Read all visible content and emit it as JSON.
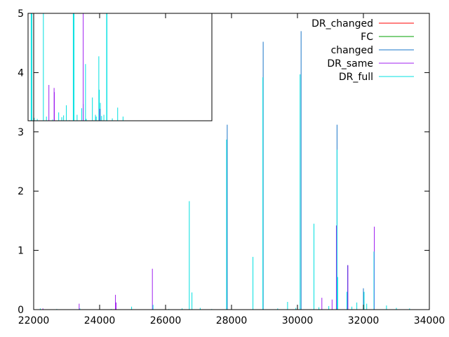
{
  "chart_data": {
    "type": "line",
    "style": "impulses",
    "title": "",
    "xlabel": "",
    "ylabel": "",
    "xlim": [
      22000,
      34000
    ],
    "ylim": [
      0,
      5
    ],
    "xticks": [
      "22000",
      "24000",
      "26000",
      "28000",
      "30000",
      "32000",
      "34000"
    ],
    "yticks": [
      "0",
      "1",
      "2",
      "3",
      "4",
      "5"
    ],
    "legend_position": "top-right",
    "grid": false,
    "series": [
      {
        "name": "DR_changed",
        "color": "#ff0000",
        "points": []
      },
      {
        "name": "FC",
        "color": "#00a000",
        "points": []
      },
      {
        "name": "changed",
        "color": "#1a76c8",
        "points": [
          [
            27870,
            3.12
          ],
          [
            28960,
            4.52
          ],
          [
            30110,
            4.7
          ],
          [
            31200,
            3.12
          ],
          [
            31520,
            0.75
          ],
          [
            32000,
            0.36
          ]
        ]
      },
      {
        "name": "DR_same",
        "color": "#a020f0",
        "points": [
          [
            22280,
            0.02
          ],
          [
            23380,
            0.1
          ],
          [
            24480,
            0.25
          ],
          [
            24500,
            0.12
          ],
          [
            25600,
            0.69
          ],
          [
            30740,
            0.2
          ],
          [
            31050,
            0.17
          ],
          [
            31180,
            1.42
          ],
          [
            31530,
            0.75
          ],
          [
            32330,
            1.4
          ]
        ]
      },
      {
        "name": "DR_full",
        "color": "#00e0e0",
        "points": [
          [
            22200,
            0.02
          ],
          [
            22700,
            0.01
          ],
          [
            23400,
            0.02
          ],
          [
            24000,
            0.01
          ],
          [
            24350,
            0.01
          ],
          [
            24970,
            0.05
          ],
          [
            25620,
            0.08
          ],
          [
            26100,
            0.01
          ],
          [
            26500,
            0.02
          ],
          [
            26720,
            1.83
          ],
          [
            26800,
            0.29
          ],
          [
            27050,
            0.03
          ],
          [
            27400,
            0.01
          ],
          [
            27850,
            2.87
          ],
          [
            28650,
            0.89
          ],
          [
            28950,
            3.92
          ],
          [
            29400,
            0.02
          ],
          [
            29700,
            0.13
          ],
          [
            29950,
            0.03
          ],
          [
            30080,
            3.97
          ],
          [
            30500,
            1.45
          ],
          [
            30650,
            0.04
          ],
          [
            30950,
            0.06
          ],
          [
            31200,
            2.7
          ],
          [
            31220,
            0.55
          ],
          [
            31500,
            0.3
          ],
          [
            31650,
            0.05
          ],
          [
            31800,
            0.12
          ],
          [
            32020,
            0.3
          ],
          [
            32100,
            0.1
          ],
          [
            32320,
            0.98
          ],
          [
            32700,
            0.07
          ],
          [
            33000,
            0.03
          ],
          [
            33400,
            0.02
          ]
        ]
      }
    ]
  },
  "inset": {
    "series_order": [
      "DR_full",
      "DR_same"
    ],
    "bars": [
      {
        "series": "DR_full",
        "points": [
          [
            22200,
            5.0
          ],
          [
            22250,
            5.0
          ],
          [
            22400,
            3.25
          ],
          [
            22600,
            3.23
          ],
          [
            23000,
            5.0
          ],
          [
            23200,
            3.27
          ],
          [
            23600,
            3.22
          ],
          [
            24000,
            3.34
          ],
          [
            24200,
            3.26
          ],
          [
            24320,
            3.29
          ],
          [
            24500,
            3.46
          ],
          [
            24700,
            3.21
          ],
          [
            24950,
            5.0
          ],
          [
            25000,
            5.0
          ],
          [
            25200,
            3.3
          ],
          [
            25500,
            3.41
          ],
          [
            25600,
            3.48
          ],
          [
            25750,
            4.15
          ],
          [
            25800,
            3.23
          ],
          [
            26200,
            3.59
          ],
          [
            26400,
            3.3
          ],
          [
            26450,
            3.27
          ],
          [
            26620,
            4.28
          ],
          [
            26650,
            3.72
          ],
          [
            26720,
            3.5
          ],
          [
            26800,
            3.28
          ],
          [
            26950,
            3.3
          ],
          [
            27130,
            5.0
          ],
          [
            27150,
            5.0
          ],
          [
            27500,
            3.24
          ],
          [
            27850,
            3.42
          ],
          [
            28200,
            3.27
          ]
        ]
      },
      {
        "series": "DR_same",
        "points": [
          [
            23360,
            3.8
          ],
          [
            23700,
            3.75
          ],
          [
            23720,
            3.68
          ],
          [
            25600,
            5.0
          ],
          [
            26680,
            3.4
          ]
        ]
      }
    ]
  }
}
